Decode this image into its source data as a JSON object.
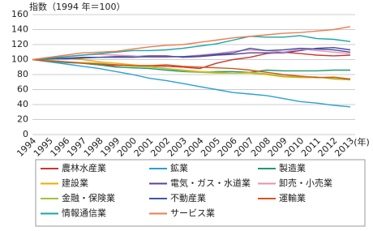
{
  "chart_data": {
    "type": "line",
    "title": "指数（1994 年＝100）",
    "x_label": "(年)",
    "x": [
      "1994",
      "1995",
      "1996",
      "1997",
      "1998",
      "1999",
      "2000",
      "2001",
      "2002",
      "2003",
      "2004",
      "2005",
      "2006",
      "2007",
      "2008",
      "2009",
      "2010",
      "2011",
      "2012",
      "2013"
    ],
    "ylim": [
      0,
      160
    ],
    "yticks": [
      0,
      20,
      40,
      60,
      80,
      100,
      120,
      140,
      160
    ],
    "grid": true,
    "series": [
      {
        "name": "農林水産業",
        "color": "#c8372d",
        "values": [
          100,
          99,
          97,
          95,
          93,
          92,
          92,
          92,
          91,
          90,
          88,
          95,
          100,
          103,
          108,
          110,
          108,
          106,
          105,
          106
        ]
      },
      {
        "name": "鉱業",
        "color": "#2a9fd8",
        "values": [
          100,
          97,
          94,
          91,
          88,
          84,
          80,
          75,
          72,
          68,
          64,
          60,
          56,
          54,
          52,
          48,
          44,
          42,
          39,
          37
        ]
      },
      {
        "name": "製造業",
        "color": "#1f9a6e",
        "values": [
          100,
          98,
          96,
          95,
          93,
          90,
          89,
          88,
          86,
          84,
          83,
          84,
          84,
          83,
          86,
          85,
          85,
          85,
          86,
          86
        ]
      },
      {
        "name": "建設業",
        "color": "#f2a900",
        "values": [
          100,
          101,
          102,
          100,
          97,
          95,
          93,
          91,
          88,
          86,
          84,
          83,
          82,
          82,
          80,
          77,
          76,
          76,
          77,
          74
        ]
      },
      {
        "name": "電気・ガス・水道業",
        "color": "#5e3f9e",
        "values": [
          100,
          101,
          102,
          103,
          103,
          104,
          104,
          105,
          105,
          103,
          104,
          106,
          107,
          109,
          109,
          109,
          112,
          115,
          116,
          113
        ]
      },
      {
        "name": "卸売・小売業",
        "color": "#ec8fae",
        "values": [
          100,
          102,
          104,
          106,
          107,
          106,
          105,
          103,
          103,
          104,
          106,
          108,
          111,
          113,
          112,
          110,
          114,
          112,
          110,
          108
        ]
      },
      {
        "name": "金融・保険業",
        "color": "#9cc43c",
        "values": [
          100,
          99,
          97,
          96,
          95,
          93,
          91,
          90,
          88,
          85,
          83,
          82,
          82,
          83,
          81,
          78,
          77,
          77,
          74,
          73
        ]
      },
      {
        "name": "不動産業",
        "color": "#3c5aa8",
        "values": [
          100,
          101,
          101,
          102,
          103,
          103,
          103,
          104,
          104,
          104,
          105,
          107,
          109,
          115,
          112,
          113,
          115,
          114,
          113,
          110
        ]
      },
      {
        "name": "運輸業",
        "color": "#d9531e",
        "values": [
          100,
          98,
          97,
          95,
          94,
          93,
          92,
          92,
          93,
          91,
          90,
          89,
          88,
          86,
          83,
          80,
          78,
          76,
          76,
          74
        ]
      },
      {
        "name": "情報通信業",
        "color": "#1aa6a6",
        "values": [
          100,
          102,
          104,
          106,
          108,
          110,
          112,
          112,
          113,
          115,
          118,
          121,
          126,
          131,
          130,
          130,
          132,
          128,
          127,
          124
        ]
      },
      {
        "name": "サービス業",
        "color": "#ef7d4f",
        "values": [
          100,
          103,
          106,
          109,
          110,
          111,
          114,
          117,
          119,
          120,
          123,
          126,
          129,
          131,
          133,
          135,
          136,
          138,
          140,
          144
        ]
      }
    ]
  }
}
